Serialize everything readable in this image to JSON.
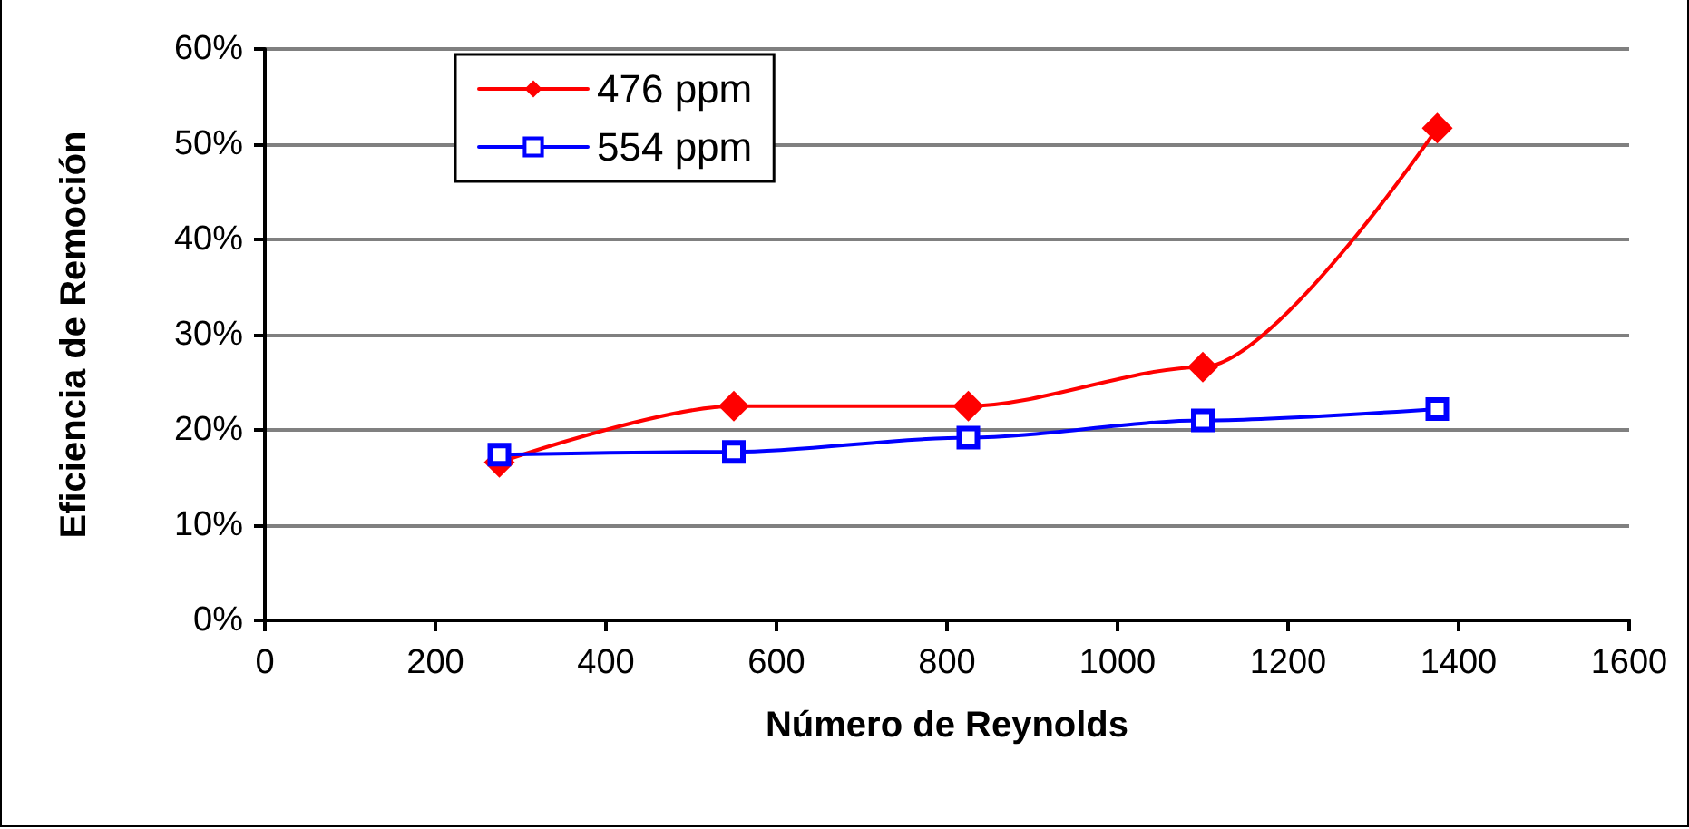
{
  "chart_data": {
    "type": "line",
    "xlabel": "Número de Reynolds",
    "ylabel": "Eficiencia de Remoción",
    "series": [
      {
        "name": "476 ppm",
        "color": "#ff0000",
        "marker": "diamond",
        "x": [
          275,
          550,
          825,
          1100,
          1375
        ],
        "values": [
          16.6,
          22.5,
          22.5,
          26.6,
          51.7
        ]
      },
      {
        "name": "554 ppm",
        "color": "#0000ff",
        "marker": "square",
        "x": [
          275,
          550,
          825,
          1100,
          1375
        ],
        "values": [
          17.4,
          17.7,
          19.2,
          21.0,
          22.2
        ]
      }
    ],
    "xlim": [
      0,
      1600
    ],
    "xticks": [
      0,
      200,
      400,
      600,
      800,
      1000,
      1200,
      1400,
      1600
    ],
    "ylim": [
      0,
      60
    ],
    "yticks": [
      {
        "value": 0,
        "label": "0%"
      },
      {
        "value": 10,
        "label": "10%"
      },
      {
        "value": 20,
        "label": "20%"
      },
      {
        "value": 30,
        "label": "30%"
      },
      {
        "value": 40,
        "label": "40%"
      },
      {
        "value": 50,
        "label": "50%"
      },
      {
        "value": 60,
        "label": "60%"
      }
    ],
    "grid": "y",
    "legend": "top left",
    "line_style": "solid"
  }
}
